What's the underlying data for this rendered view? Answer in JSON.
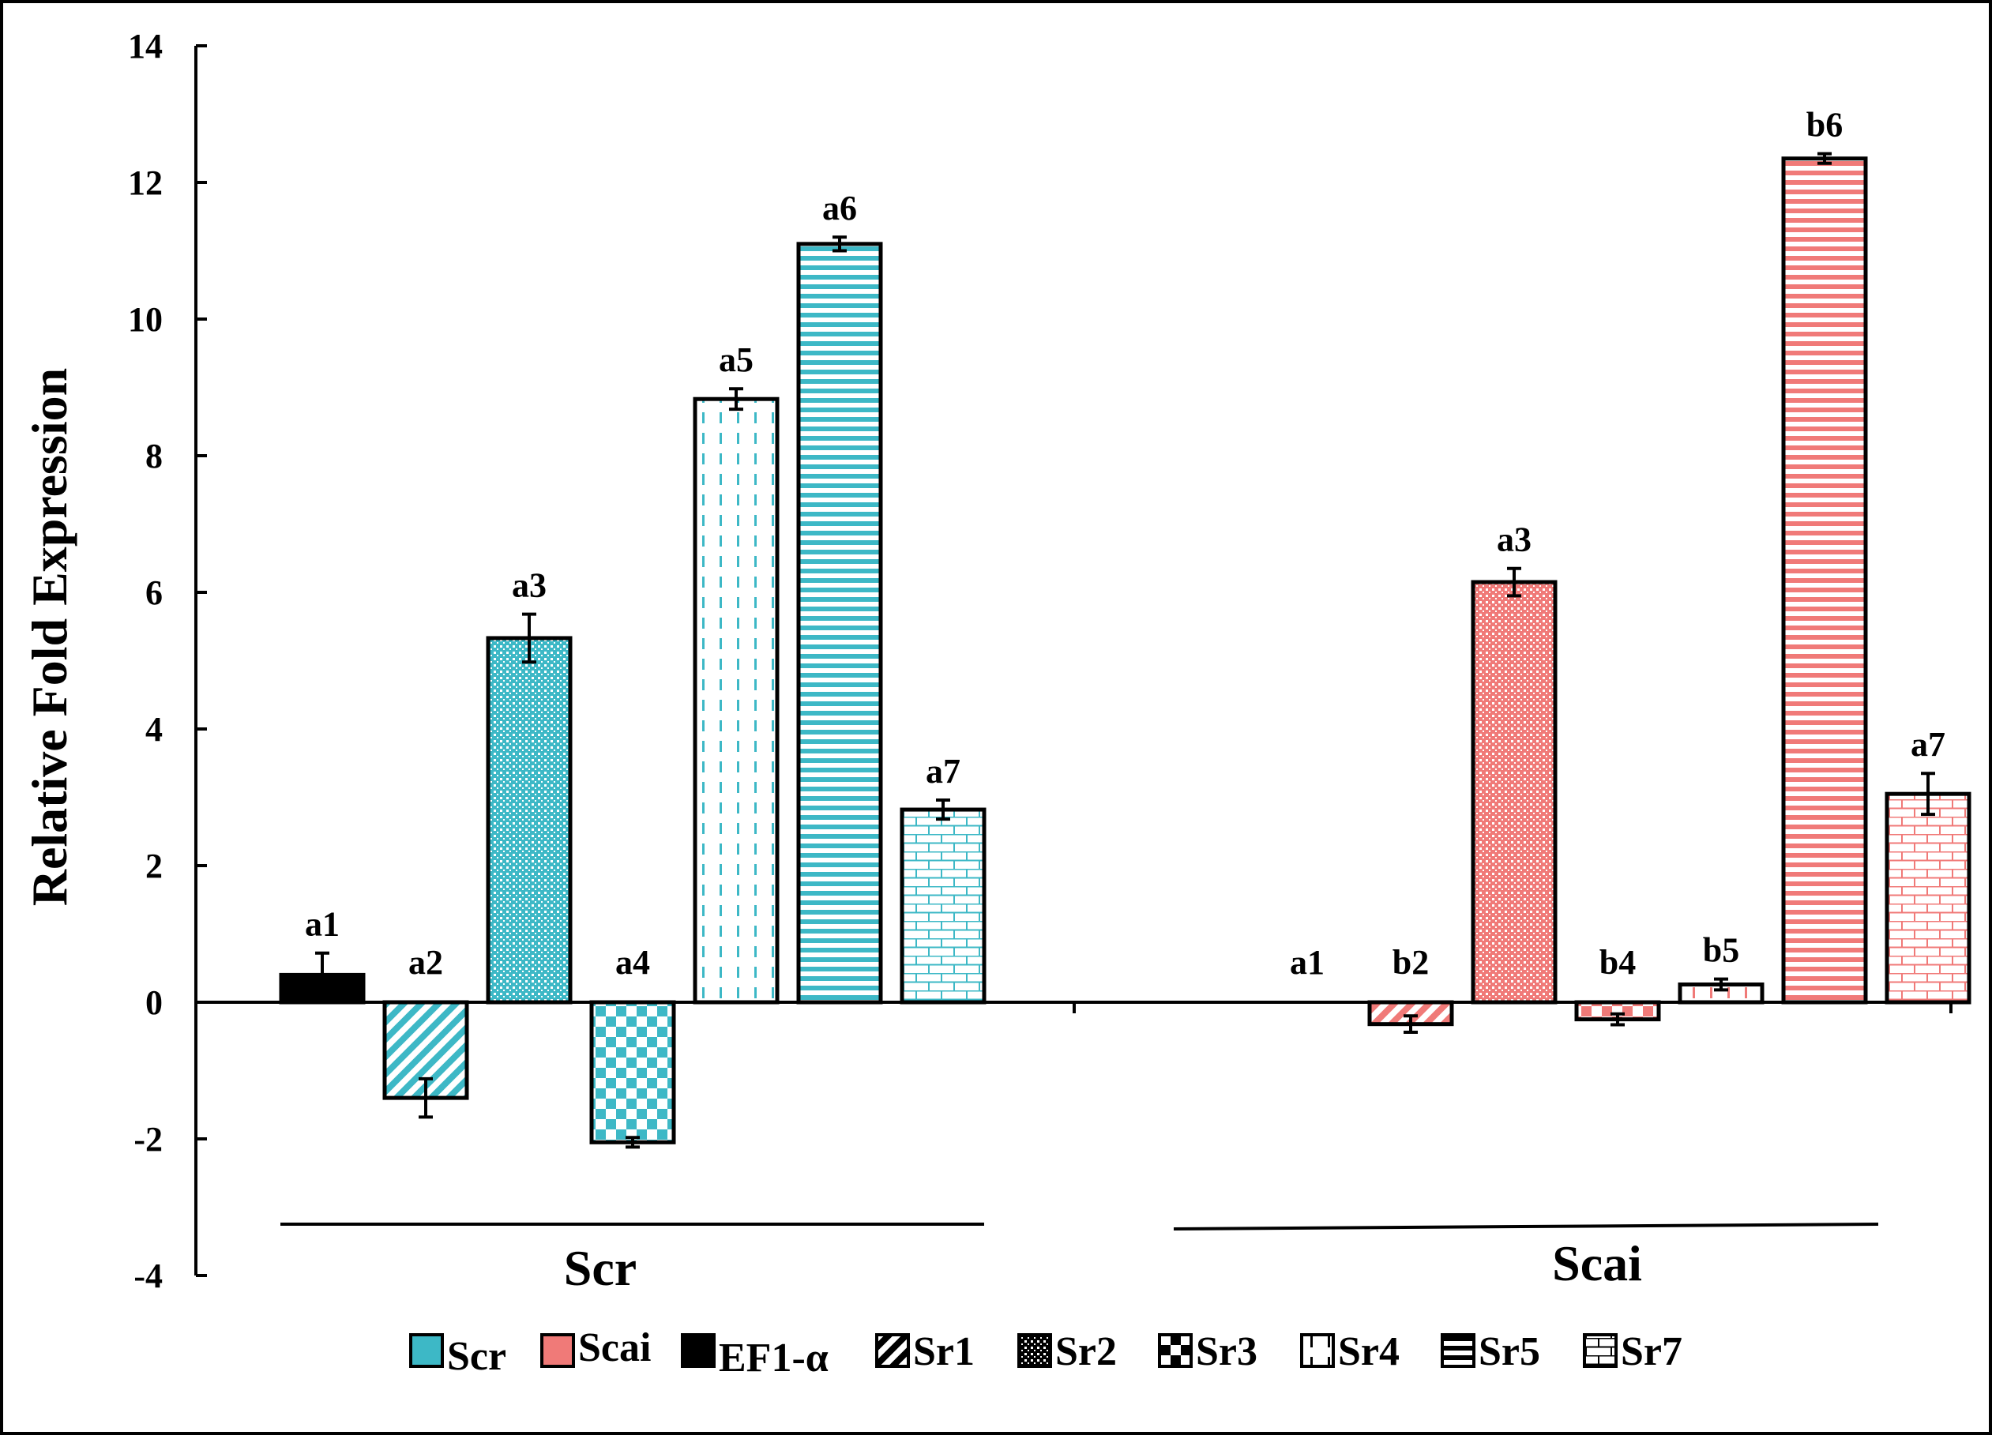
{
  "chart_data": {
    "type": "bar",
    "ylabel": "Relative Fold Expression",
    "xlabel": "",
    "ylim": [
      -4,
      14
    ],
    "y_ticks": [
      -4,
      -2,
      0,
      2,
      4,
      6,
      8,
      10,
      12,
      14
    ],
    "grid": false,
    "legend_position": "bottom",
    "colors": {
      "Scr": "#3DB8C6",
      "Scai": "#F07A78",
      "EF1-α": "#000000"
    },
    "groups": [
      {
        "name": "Scr",
        "color": "#3DB8C6",
        "bars": [
          {
            "gene": "EF1-α",
            "pattern": "solid",
            "value": 0.4,
            "error": 0.32,
            "label": "a1"
          },
          {
            "gene": "Sr1",
            "pattern": "diagonal",
            "value": -1.4,
            "error": 0.28,
            "label": "a2"
          },
          {
            "gene": "Sr2",
            "pattern": "dots",
            "value": 5.33,
            "error": 0.35,
            "label": "a3"
          },
          {
            "gene": "Sr3",
            "pattern": "checker",
            "value": -2.05,
            "error": 0.07,
            "label": "a4"
          },
          {
            "gene": "Sr4",
            "pattern": "vdash",
            "value": 8.83,
            "error": 0.15,
            "label": "a5"
          },
          {
            "gene": "Sr5",
            "pattern": "hlines",
            "value": 11.1,
            "error": 0.1,
            "label": "a6"
          },
          {
            "gene": "Sr7",
            "pattern": "brick",
            "value": 2.82,
            "error": 0.14,
            "label": "a7"
          }
        ]
      },
      {
        "name": "Scai",
        "color": "#F07A78",
        "bars": [
          {
            "gene": "EF1-α",
            "pattern": "solid",
            "value": 0,
            "error": 0,
            "label": "a1"
          },
          {
            "gene": "Sr1",
            "pattern": "diagonal",
            "value": -0.32,
            "error": 0.12,
            "label": "b2"
          },
          {
            "gene": "Sr2",
            "pattern": "dots",
            "value": 6.15,
            "error": 0.2,
            "label": "a3"
          },
          {
            "gene": "Sr3",
            "pattern": "checker",
            "value": -0.25,
            "error": 0.08,
            "label": "b4"
          },
          {
            "gene": "Sr4",
            "pattern": "vdash",
            "value": 0.26,
            "error": 0.08,
            "label": "b5"
          },
          {
            "gene": "Sr5",
            "pattern": "hlines",
            "value": 12.35,
            "error": 0.07,
            "label": "b6"
          },
          {
            "gene": "Sr7",
            "pattern": "brick",
            "value": 3.05,
            "error": 0.3,
            "label": "a7"
          }
        ]
      }
    ],
    "legend": [
      {
        "label": "Scr",
        "swatch": "Scr"
      },
      {
        "label": "Scai",
        "swatch": "Scai"
      },
      {
        "label": "EF1-α",
        "swatch": "solid"
      },
      {
        "label": "Sr1",
        "swatch": "diagonal"
      },
      {
        "label": "Sr2",
        "swatch": "dots"
      },
      {
        "label": "Sr3",
        "swatch": "checker"
      },
      {
        "label": "Sr4",
        "swatch": "vdash"
      },
      {
        "label": "Sr5",
        "swatch": "hlines"
      },
      {
        "label": "Sr7",
        "swatch": "brick"
      }
    ]
  }
}
